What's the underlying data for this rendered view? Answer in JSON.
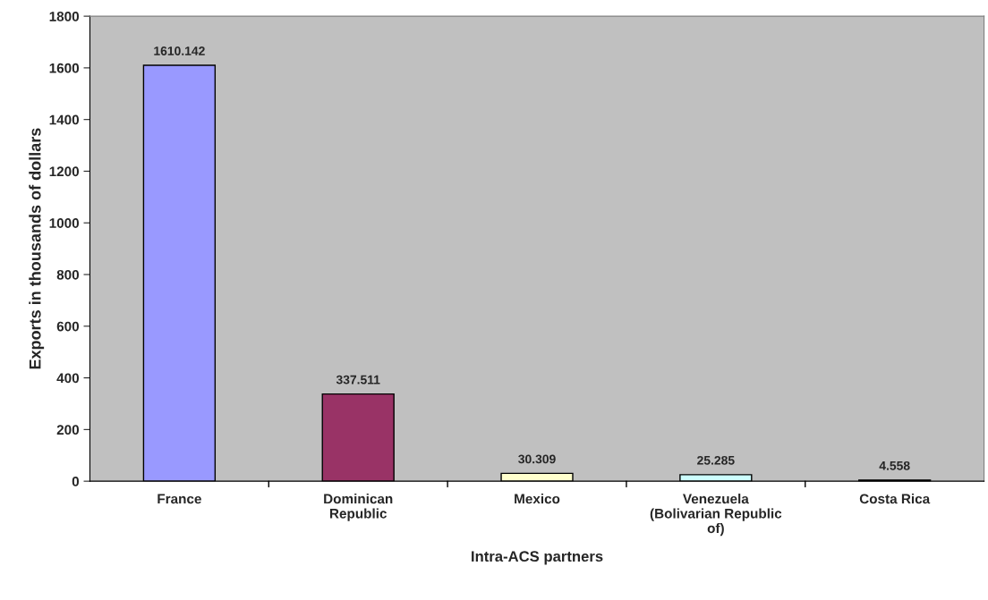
{
  "chart_data": {
    "type": "bar",
    "xlabel": "Intra-ACS partners",
    "ylabel": "Exports in thousands of dollars",
    "categories": [
      "France",
      "Dominican\nRepublic",
      "Mexico",
      "Venezuela\n(Bolivarian Republic\nof)",
      "Costa Rica"
    ],
    "values": [
      1610.142,
      337.511,
      30.309,
      25.285,
      4.558
    ],
    "colors": [
      "#9999ff",
      "#993366",
      "#ffffcc",
      "#ccffff",
      "#000000"
    ],
    "value_labels": [
      "1610.142",
      "337.511",
      "30.309",
      "25.285",
      "4.558"
    ],
    "ylim": [
      0,
      1800
    ],
    "yticks": [
      0,
      200,
      400,
      600,
      800,
      1000,
      1200,
      1400,
      1600,
      1800
    ],
    "grid": false,
    "legend": false
  }
}
